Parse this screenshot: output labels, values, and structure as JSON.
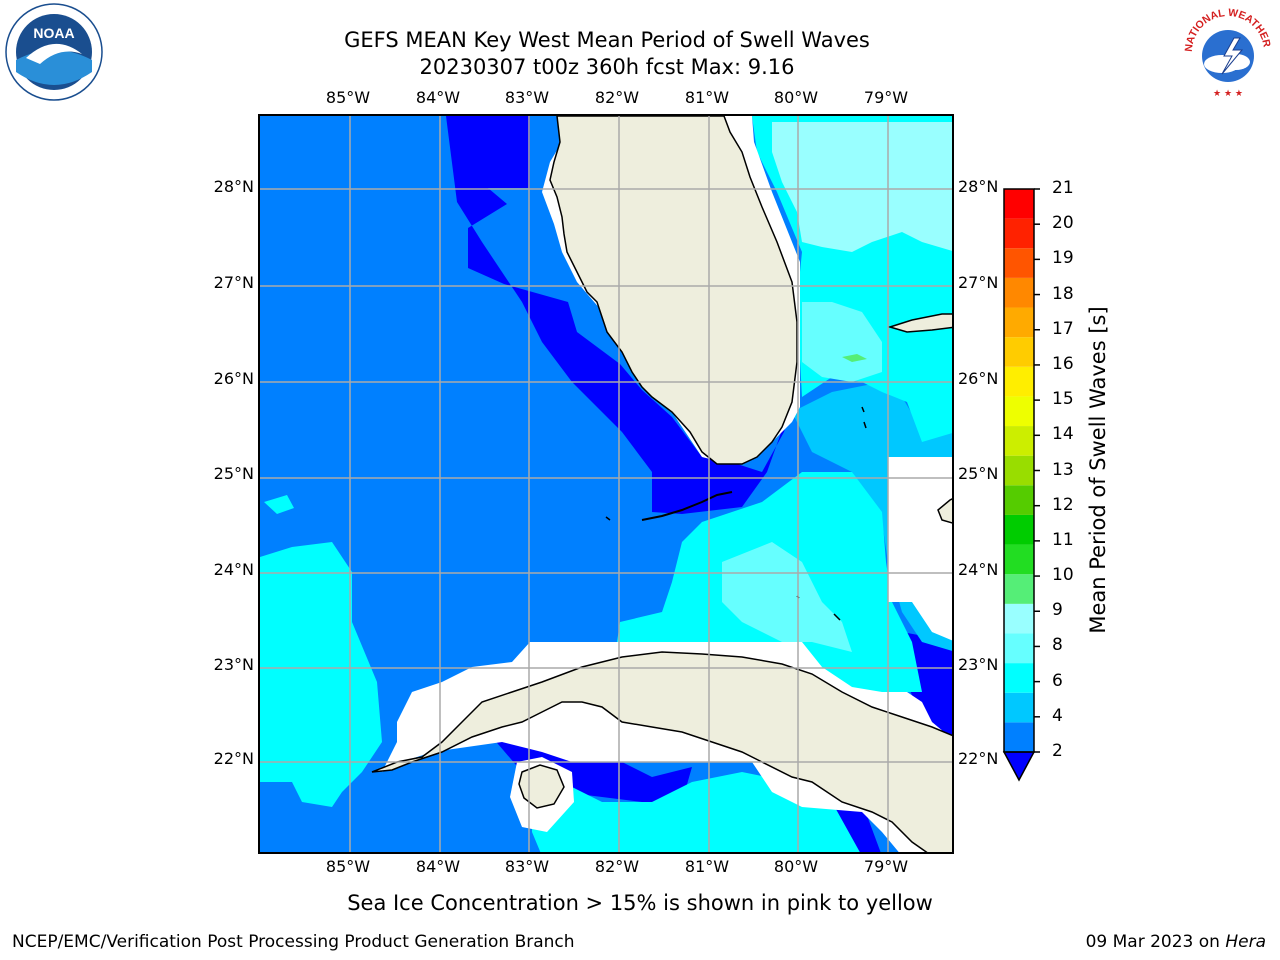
{
  "header": {
    "title_line1": "GEFS MEAN Key West Mean Period of Swell Waves",
    "title_line2": "20230307 t00z 360h fcst   Max: 9.16"
  },
  "axes": {
    "lon_labels": [
      "85°W",
      "84°W",
      "83°W",
      "82°W",
      "81°W",
      "80°W",
      "79°W"
    ],
    "lat_labels": [
      "28°N",
      "27°N",
      "26°N",
      "25°N",
      "24°N",
      "23°N",
      "22°N"
    ]
  },
  "map": {
    "region": "Florida Straits / Key West",
    "gridlines": true,
    "ocean_color": "#0080ff",
    "land_color": "#eeeedd",
    "ice_free_white": "#ffffff"
  },
  "colorbar": {
    "label": "Mean Period of Swell Waves [s]",
    "ticks": [
      "2",
      "4",
      "6",
      "8",
      "9",
      "10",
      "11",
      "12",
      "13",
      "14",
      "15",
      "16",
      "17",
      "18",
      "19",
      "20",
      "21"
    ],
    "colors": [
      "#0080ff",
      "#00c8ff",
      "#00ffff",
      "#66ffff",
      "#99ffff",
      "#55ee77",
      "#22dd22",
      "#00cc00",
      "#55cc00",
      "#99dd00",
      "#ccee00",
      "#eeff00",
      "#ffee00",
      "#ffcc00",
      "#ffaa00",
      "#ff8800",
      "#ff5500",
      "#ff2200",
      "#ff0000"
    ],
    "under_color": "#0000ff"
  },
  "notes": {
    "ice": "Sea Ice Concentration > 15% is shown in pink to yellow"
  },
  "footer": {
    "left": "NCEP/EMC/Verification Post Processing Product Generation Branch",
    "date": "09 Mar 2023 on ",
    "host": "Hera"
  },
  "logos": {
    "noaa_text": "NOAA",
    "nws_text": "NATIONAL WEATHER SERVICE"
  }
}
